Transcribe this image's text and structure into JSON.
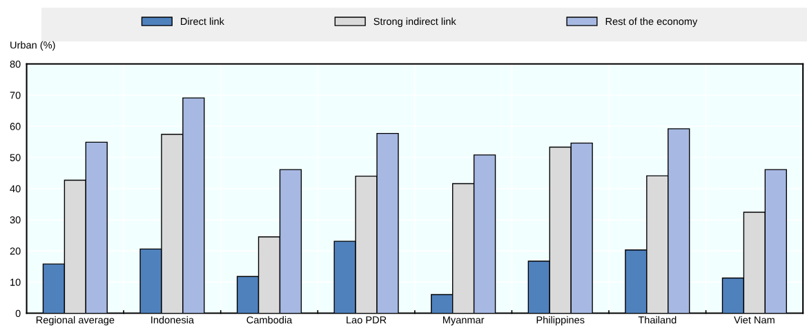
{
  "chart_data": {
    "type": "bar",
    "ylabel": "Urban (%)",
    "categories": [
      "Regional average",
      "Indonesia",
      "Cambodia",
      "Lao PDR",
      "Myanmar",
      "Philippines",
      "Thailand",
      "Viet Nam"
    ],
    "series": [
      {
        "name": "Direct link",
        "color": "#4f81bd",
        "values": [
          15.8,
          20.6,
          11.8,
          23.1,
          6.0,
          16.7,
          20.3,
          11.3
        ]
      },
      {
        "name": "Strong indirect link",
        "color": "#dadada",
        "values": [
          42.7,
          57.4,
          24.5,
          44.0,
          41.6,
          53.3,
          44.1,
          32.4
        ]
      },
      {
        "name": "Rest of the economy",
        "color": "#a7b9e3",
        "values": [
          54.9,
          69.1,
          46.1,
          57.7,
          50.8,
          54.6,
          59.2,
          46.1
        ]
      }
    ],
    "ylim": [
      0,
      80
    ],
    "yticks": [
      0,
      10,
      20,
      30,
      40,
      50,
      60,
      70,
      80
    ],
    "grid": true,
    "legend": "top"
  }
}
